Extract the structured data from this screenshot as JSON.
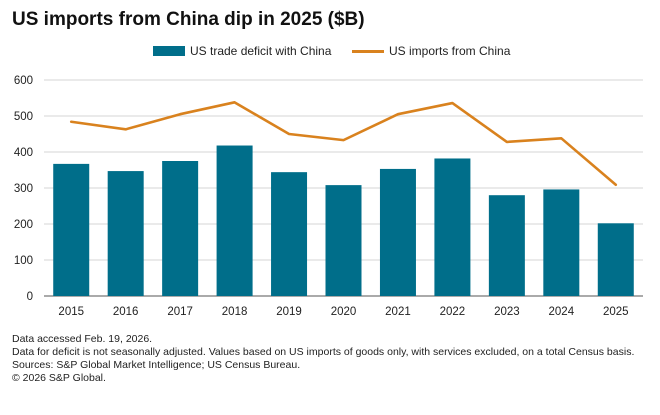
{
  "chart_data": {
    "type": "bar+line",
    "title": "US imports from China dip in 2025 ($B)",
    "categories": [
      "2015",
      "2016",
      "2017",
      "2018",
      "2019",
      "2020",
      "2021",
      "2022",
      "2023",
      "2024",
      "2025"
    ],
    "series": [
      {
        "name": "US trade deficit with China",
        "type": "bar",
        "color": "#006E8A",
        "values": [
          367,
          347,
          375,
          418,
          344,
          308,
          353,
          382,
          280,
          296,
          202
        ]
      },
      {
        "name": "US imports from China",
        "type": "line",
        "color": "#D9821E",
        "values": [
          484,
          463,
          505,
          538,
          450,
          433,
          505,
          536,
          428,
          438,
          309
        ]
      }
    ],
    "ylim": [
      0,
      600
    ],
    "yticks": [
      0,
      100,
      200,
      300,
      400,
      500,
      600
    ],
    "grid": true,
    "legend_position": "top"
  },
  "notes": [
    "Data accessed Feb. 19, 2026.",
    "Data for deficit is not seasonally adjusted. Values based on US imports of goods only, with services excluded, on a total Census basis.",
    "Sources: S&P Global Market Intelligence; US Census Bureau.",
    "© 2026 S&P Global."
  ]
}
